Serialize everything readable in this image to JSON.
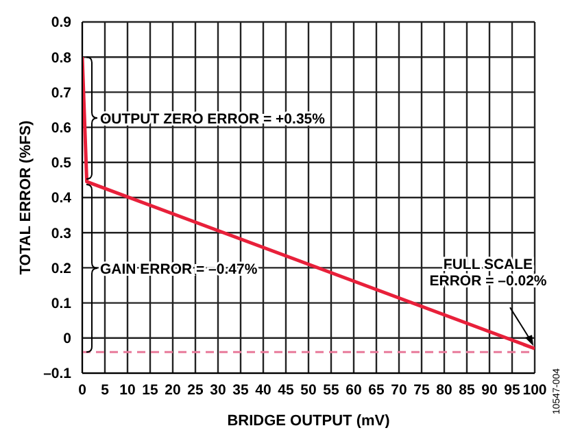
{
  "chart_data": {
    "type": "line",
    "xlabel": "BRIDGE OUTPUT (mV)",
    "ylabel": "TOTAL ERROR (%FS)",
    "x": [
      0,
      1,
      100
    ],
    "series": [
      {
        "color": "#e8203a",
        "values": [
          0.8,
          0.445,
          -0.03
        ]
      }
    ],
    "xlim": [
      0,
      100
    ],
    "xticks": [
      0,
      5,
      10,
      15,
      20,
      25,
      30,
      35,
      40,
      45,
      50,
      55,
      60,
      65,
      70,
      75,
      80,
      85,
      90,
      95,
      100
    ],
    "ylim": [
      -0.1,
      0.9
    ],
    "yticks": [
      {
        "value": -0.1,
        "label": "–0.1"
      },
      0,
      0.1,
      0.2,
      0.3,
      0.4,
      0.5,
      0.6,
      0.7,
      0.8,
      0.9
    ],
    "grid": true,
    "marker": "none",
    "line_style": "solid",
    "ref_lines": [
      {
        "axis": "y",
        "value": -0.04,
        "color": "#e87a9a",
        "line_style": "dashed"
      }
    ],
    "annotations": [
      "OUTPUT ZERO ERROR = +0.35%",
      "GAIN ERROR = –0.47%",
      {
        "text": "FULL SCALE\nERROR = –0.02%",
        "x": 100,
        "y": -0.03
      },
      "10547-004"
    ]
  }
}
